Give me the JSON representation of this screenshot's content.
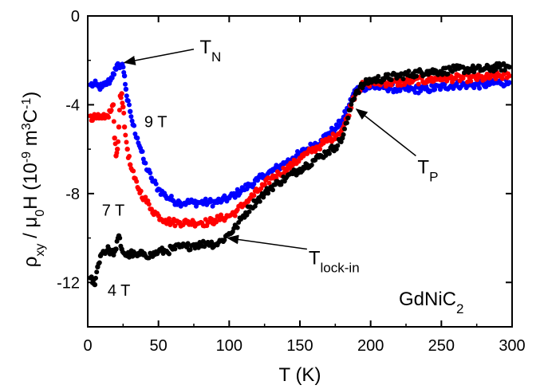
{
  "chart_data": {
    "type": "scatter",
    "title": "",
    "xlabel": "T (K)",
    "ylabel": "ρxy / μ0H (10-9 m3C-1)",
    "xlim": [
      0,
      300
    ],
    "ylim": [
      -14,
      0
    ],
    "x_ticks": [
      "0",
      "50",
      "100",
      "150",
      "200",
      "250",
      "300"
    ],
    "y_ticks": [
      "0",
      "-4",
      "-8",
      "-12"
    ],
    "sample_label": "GdNiC2",
    "series": [
      {
        "name": "9 T",
        "color": "#0000ff",
        "points": [
          [
            2,
            -3.1
          ],
          [
            4,
            -3.1
          ],
          [
            6,
            -3.1
          ],
          [
            8,
            -3.2
          ],
          [
            10,
            -3.2
          ],
          [
            12,
            -3.1
          ],
          [
            14,
            -3.0
          ],
          [
            16,
            -2.9
          ],
          [
            18,
            -2.6
          ],
          [
            20,
            -2.4
          ],
          [
            22,
            -2.2
          ],
          [
            24,
            -2.2
          ],
          [
            25,
            -2.3
          ],
          [
            26,
            -2.7
          ],
          [
            27,
            -3.3
          ],
          [
            28,
            -3.8
          ],
          [
            30,
            -4.3
          ],
          [
            32,
            -4.9
          ],
          [
            35,
            -5.5
          ],
          [
            38,
            -6.1
          ],
          [
            40,
            -6.6
          ],
          [
            45,
            -7.3
          ],
          [
            50,
            -7.8
          ],
          [
            55,
            -8.1
          ],
          [
            60,
            -8.3
          ],
          [
            65,
            -8.4
          ],
          [
            70,
            -8.4
          ],
          [
            75,
            -8.4
          ],
          [
            80,
            -8.4
          ],
          [
            85,
            -8.4
          ],
          [
            90,
            -8.4
          ],
          [
            95,
            -8.3
          ],
          [
            100,
            -8.2
          ],
          [
            105,
            -8.0
          ],
          [
            110,
            -7.8
          ],
          [
            115,
            -7.6
          ],
          [
            120,
            -7.4
          ],
          [
            125,
            -7.2
          ],
          [
            130,
            -7.0
          ],
          [
            135,
            -6.8
          ],
          [
            140,
            -6.6
          ],
          [
            145,
            -6.4
          ],
          [
            150,
            -6.2
          ],
          [
            155,
            -6.0
          ],
          [
            160,
            -5.8
          ],
          [
            165,
            -5.6
          ],
          [
            170,
            -5.3
          ],
          [
            175,
            -5.1
          ],
          [
            180,
            -4.7
          ],
          [
            185,
            -4.0
          ],
          [
            188,
            -3.5
          ],
          [
            190,
            -3.3
          ],
          [
            195,
            -3.2
          ],
          [
            200,
            -3.2
          ],
          [
            210,
            -3.2
          ],
          [
            220,
            -3.3
          ],
          [
            230,
            -3.3
          ],
          [
            240,
            -3.3
          ],
          [
            250,
            -3.2
          ],
          [
            260,
            -3.1
          ],
          [
            270,
            -3.1
          ],
          [
            280,
            -3.1
          ],
          [
            290,
            -3.0
          ],
          [
            298,
            -3.0
          ]
        ]
      },
      {
        "name": "7 T",
        "color": "#ff0000",
        "points": [
          [
            2,
            -4.5
          ],
          [
            4,
            -4.6
          ],
          [
            6,
            -4.6
          ],
          [
            8,
            -4.6
          ],
          [
            10,
            -4.6
          ],
          [
            12,
            -4.6
          ],
          [
            14,
            -4.5
          ],
          [
            16,
            -4.3
          ],
          [
            18,
            -4.0
          ],
          [
            19,
            -5.5
          ],
          [
            20,
            -6.3
          ],
          [
            21,
            -6.0
          ],
          [
            22,
            -5.0
          ],
          [
            23,
            -3.6
          ],
          [
            24,
            -3.5
          ],
          [
            25,
            -4.1
          ],
          [
            26,
            -5.0
          ],
          [
            28,
            -6.0
          ],
          [
            30,
            -6.7
          ],
          [
            33,
            -7.3
          ],
          [
            36,
            -7.8
          ],
          [
            40,
            -8.2
          ],
          [
            45,
            -8.7
          ],
          [
            50,
            -9.0
          ],
          [
            55,
            -9.2
          ],
          [
            60,
            -9.3
          ],
          [
            65,
            -9.3
          ],
          [
            70,
            -9.3
          ],
          [
            75,
            -9.3
          ],
          [
            80,
            -9.3
          ],
          [
            85,
            -9.3
          ],
          [
            90,
            -9.2
          ],
          [
            95,
            -9.1
          ],
          [
            100,
            -9.0
          ],
          [
            105,
            -8.8
          ],
          [
            110,
            -8.5
          ],
          [
            115,
            -8.2
          ],
          [
            120,
            -7.9
          ],
          [
            125,
            -7.6
          ],
          [
            130,
            -7.3
          ],
          [
            135,
            -7.1
          ],
          [
            140,
            -6.9
          ],
          [
            145,
            -6.7
          ],
          [
            150,
            -6.4
          ],
          [
            155,
            -6.2
          ],
          [
            160,
            -6.0
          ],
          [
            165,
            -5.8
          ],
          [
            170,
            -5.6
          ],
          [
            175,
            -5.4
          ],
          [
            180,
            -5.1
          ],
          [
            184,
            -4.5
          ],
          [
            187,
            -3.8
          ],
          [
            190,
            -3.4
          ],
          [
            195,
            -3.1
          ],
          [
            200,
            -3.0
          ],
          [
            210,
            -3.0
          ],
          [
            220,
            -3.0
          ],
          [
            230,
            -2.9
          ],
          [
            240,
            -2.9
          ],
          [
            250,
            -2.8
          ],
          [
            260,
            -2.8
          ],
          [
            270,
            -2.8
          ],
          [
            280,
            -2.8
          ],
          [
            290,
            -2.7
          ],
          [
            298,
            -2.7
          ]
        ]
      },
      {
        "name": "4 T",
        "color": "#000000",
        "points": [
          [
            2,
            -11.8
          ],
          [
            4,
            -11.9
          ],
          [
            5,
            -12.1
          ],
          [
            7,
            -11.3
          ],
          [
            9,
            -10.8
          ],
          [
            11,
            -10.6
          ],
          [
            13,
            -10.6
          ],
          [
            15,
            -10.5
          ],
          [
            17,
            -10.7
          ],
          [
            19,
            -10.6
          ],
          [
            20,
            -10.5
          ],
          [
            22,
            -9.9
          ],
          [
            24,
            -10.5
          ],
          [
            26,
            -10.7
          ],
          [
            28,
            -10.8
          ],
          [
            30,
            -10.7
          ],
          [
            35,
            -10.8
          ],
          [
            40,
            -10.7
          ],
          [
            45,
            -10.8
          ],
          [
            50,
            -10.6
          ],
          [
            55,
            -10.6
          ],
          [
            60,
            -10.5
          ],
          [
            65,
            -10.4
          ],
          [
            70,
            -10.4
          ],
          [
            75,
            -10.3
          ],
          [
            80,
            -10.3
          ],
          [
            85,
            -10.2
          ],
          [
            90,
            -10.3
          ],
          [
            95,
            -10.1
          ],
          [
            100,
            -9.8
          ],
          [
            105,
            -9.5
          ],
          [
            110,
            -9.0
          ],
          [
            115,
            -8.6
          ],
          [
            120,
            -8.3
          ],
          [
            125,
            -8.0
          ],
          [
            130,
            -7.7
          ],
          [
            135,
            -7.5
          ],
          [
            140,
            -7.3
          ],
          [
            145,
            -7.1
          ],
          [
            150,
            -6.9
          ],
          [
            155,
            -6.7
          ],
          [
            160,
            -6.5
          ],
          [
            165,
            -6.3
          ],
          [
            170,
            -6.1
          ],
          [
            175,
            -5.9
          ],
          [
            180,
            -5.5
          ],
          [
            184,
            -4.6
          ],
          [
            187,
            -3.8
          ],
          [
            190,
            -3.4
          ],
          [
            195,
            -3.1
          ],
          [
            200,
            -2.9
          ],
          [
            210,
            -2.8
          ],
          [
            220,
            -2.7
          ],
          [
            230,
            -2.6
          ],
          [
            240,
            -2.5
          ],
          [
            250,
            -2.5
          ],
          [
            260,
            -2.4
          ],
          [
            270,
            -2.4
          ],
          [
            280,
            -2.4
          ],
          [
            290,
            -2.3
          ],
          [
            298,
            -2.3
          ]
        ]
      }
    ],
    "series_labels": [
      {
        "text": "9 T",
        "x": 40,
        "y": -5.0
      },
      {
        "text": "7 T",
        "x": 10,
        "y": -9.0
      },
      {
        "text": "4 T",
        "x": 14,
        "y": -12.6
      }
    ],
    "annotations": [
      {
        "main": "T",
        "sub": "N",
        "x": 78,
        "y": -1.4,
        "arrow_from": [
          75,
          -1.5
        ],
        "arrow_to": [
          26,
          -2.1
        ]
      },
      {
        "main": "T",
        "sub": "P",
        "x": 232,
        "y": -6.8,
        "arrow_from": [
          232,
          -6.3
        ],
        "arrow_to": [
          190,
          -4.2
        ]
      },
      {
        "main": "T",
        "sub": "lock-in",
        "x": 155,
        "y": -10.9,
        "arrow_from": [
          155,
          -10.5
        ],
        "arrow_to": [
          99,
          -10.0
        ]
      }
    ]
  }
}
